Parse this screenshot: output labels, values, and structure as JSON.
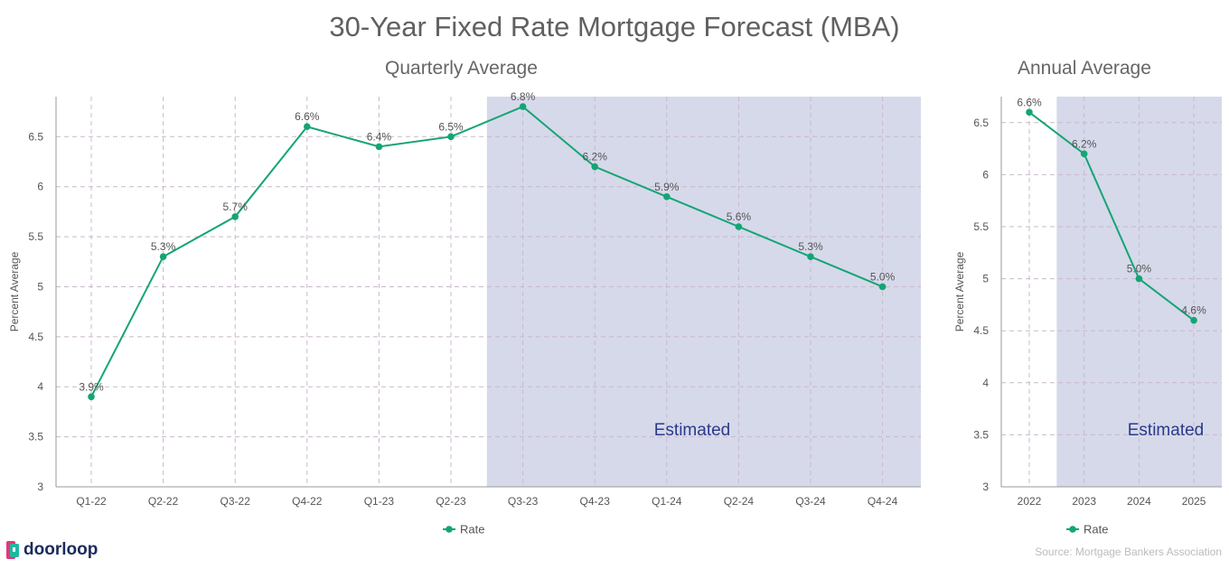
{
  "title": "30-Year Fixed Rate Mortgage Forecast (MBA)",
  "brand": "doorloop",
  "source": "Source: Mortgage Bankers Association",
  "colors": {
    "line": "#14a574",
    "estimated_band": "#d6d9ea",
    "estimated_text": "#2b3a8a",
    "grid": "#c9b8cc"
  },
  "chart_data": [
    {
      "type": "line",
      "title": "Quarterly Average",
      "ylabel": "Percent Average",
      "ylim": [
        3,
        6.9
      ],
      "yticks": [
        3,
        3.5,
        4,
        4.5,
        5,
        5.5,
        6,
        6.5
      ],
      "categories": [
        "Q1-22",
        "Q2-22",
        "Q3-22",
        "Q4-22",
        "Q1-23",
        "Q2-23",
        "Q3-23",
        "Q4-23",
        "Q1-24",
        "Q2-24",
        "Q3-24",
        "Q4-24"
      ],
      "series": [
        {
          "name": "Rate",
          "values": [
            3.9,
            5.3,
            5.7,
            6.6,
            6.4,
            6.5,
            6.8,
            6.2,
            5.9,
            5.6,
            5.3,
            5.0
          ],
          "labels": [
            "3.9%",
            "5.3%",
            "5.7%",
            "6.6%",
            "6.4%",
            "6.5%",
            "6.8%",
            "6.2%",
            "5.9%",
            "5.6%",
            "5.3%",
            "5.0%"
          ]
        }
      ],
      "estimated_from": "Q3-23",
      "annotation": "Estimated",
      "legend": "bottom",
      "grid": true
    },
    {
      "type": "line",
      "title": "Annual Average",
      "ylabel": "Percent Average",
      "ylim": [
        3,
        6.75
      ],
      "yticks": [
        3,
        3.5,
        4,
        4.5,
        5,
        5.5,
        6,
        6.5
      ],
      "categories": [
        "2022",
        "2023",
        "2024",
        "2025"
      ],
      "series": [
        {
          "name": "Rate",
          "values": [
            6.6,
            6.2,
            5.0,
            4.6
          ],
          "labels": [
            "6.6%",
            "6.2%",
            "5.0%",
            "4.6%"
          ]
        }
      ],
      "estimated_from": "2023",
      "annotation": "Estimated",
      "legend": "bottom",
      "grid": true
    }
  ]
}
